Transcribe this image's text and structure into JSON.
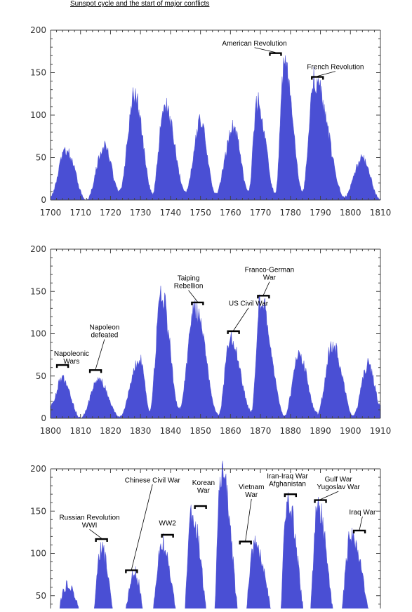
{
  "title": "Sunspot cycle and the start of major conflicts",
  "colors": {
    "fill": "#4a4fd4",
    "axis": "#444444",
    "bracket": "#000000"
  },
  "chart_data": [
    {
      "type": "area",
      "xlim": [
        1700,
        1810
      ],
      "ylim": [
        0,
        200
      ],
      "x_ticks": [
        1700,
        1710,
        1720,
        1730,
        1740,
        1750,
        1760,
        1770,
        1780,
        1790,
        1800,
        1810
      ],
      "y_ticks": [
        0,
        50,
        100,
        150,
        200
      ],
      "peaks": [
        {
          "x": 1705,
          "y": 58
        },
        {
          "x": 1718,
          "y": 63
        },
        {
          "x": 1728,
          "y": 122
        },
        {
          "x": 1738,
          "y": 111
        },
        {
          "x": 1750,
          "y": 92
        },
        {
          "x": 1761,
          "y": 86
        },
        {
          "x": 1769,
          "y": 115
        },
        {
          "x": 1778,
          "y": 158
        },
        {
          "x": 1788,
          "y": 141
        },
        {
          "x": 1804,
          "y": 48
        }
      ],
      "minima": [
        {
          "x": 1700,
          "y": 5
        },
        {
          "x": 1712,
          "y": 0
        },
        {
          "x": 1723,
          "y": 10
        },
        {
          "x": 1734,
          "y": 8
        },
        {
          "x": 1745,
          "y": 10
        },
        {
          "x": 1755,
          "y": 7
        },
        {
          "x": 1766,
          "y": 11
        },
        {
          "x": 1775,
          "y": 7
        },
        {
          "x": 1784,
          "y": 10
        },
        {
          "x": 1798,
          "y": 4
        },
        {
          "x": 1810,
          "y": 0
        }
      ],
      "annotations": [
        {
          "lines": [
            "American Revolution"
          ],
          "x": 1775,
          "y": 173,
          "tx": 1768,
          "ty": 182,
          "anchor": "middle"
        },
        {
          "lines": [
            "French Revolution"
          ],
          "x": 1789,
          "y": 145,
          "tx": 1795,
          "ty": 154,
          "anchor": "middle"
        }
      ]
    },
    {
      "type": "area",
      "xlim": [
        1800,
        1910
      ],
      "ylim": [
        0,
        200
      ],
      "x_ticks": [
        1800,
        1810,
        1820,
        1830,
        1840,
        1850,
        1860,
        1870,
        1880,
        1890,
        1900,
        1910
      ],
      "y_ticks": [
        0,
        50,
        100,
        150,
        200
      ],
      "peaks": [
        {
          "x": 1804,
          "y": 47
        },
        {
          "x": 1816,
          "y": 46
        },
        {
          "x": 1830,
          "y": 71
        },
        {
          "x": 1837,
          "y": 146
        },
        {
          "x": 1848,
          "y": 131
        },
        {
          "x": 1860,
          "y": 96
        },
        {
          "x": 1870,
          "y": 140
        },
        {
          "x": 1883,
          "y": 74
        },
        {
          "x": 1894,
          "y": 87
        },
        {
          "x": 1906,
          "y": 64
        }
      ],
      "minima": [
        {
          "x": 1800,
          "y": 15
        },
        {
          "x": 1810,
          "y": 0
        },
        {
          "x": 1823,
          "y": 2
        },
        {
          "x": 1833,
          "y": 8
        },
        {
          "x": 1843,
          "y": 11
        },
        {
          "x": 1856,
          "y": 4
        },
        {
          "x": 1867,
          "y": 8
        },
        {
          "x": 1878,
          "y": 3
        },
        {
          "x": 1889,
          "y": 6
        },
        {
          "x": 1901,
          "y": 3
        },
        {
          "x": 1910,
          "y": 15
        }
      ],
      "annotations": [
        {
          "lines": [
            "Napoleonic",
            "Wars"
          ],
          "x": 1804,
          "y": 63,
          "tx": 1807,
          "ty": 74,
          "anchor": "middle"
        },
        {
          "lines": [
            "Napoleon",
            "defeated"
          ],
          "x": 1815,
          "y": 57,
          "tx": 1818,
          "ty": 105,
          "anchor": "middle"
        },
        {
          "lines": [
            "Taiping",
            "Rebellion"
          ],
          "x": 1849,
          "y": 137,
          "tx": 1846,
          "ty": 163,
          "anchor": "middle"
        },
        {
          "lines": [
            "US Civil War"
          ],
          "x": 1861,
          "y": 103,
          "tx": 1866,
          "ty": 133,
          "anchor": "middle"
        },
        {
          "lines": [
            "Franco-German",
            "War"
          ],
          "x": 1871,
          "y": 145,
          "tx": 1873,
          "ty": 173,
          "anchor": "middle"
        }
      ]
    },
    {
      "type": "area",
      "xlim": [
        1900,
        2010
      ],
      "ylim": [
        0,
        200
      ],
      "x_ticks": [],
      "y_ticks": [
        50,
        100,
        150,
        200
      ],
      "peaks": [
        {
          "x": 1906,
          "y": 63
        },
        {
          "x": 1917,
          "y": 104
        },
        {
          "x": 1928,
          "y": 78
        },
        {
          "x": 1937,
          "y": 114
        },
        {
          "x": 1947,
          "y": 151
        },
        {
          "x": 1957,
          "y": 201
        },
        {
          "x": 1968,
          "y": 110
        },
        {
          "x": 1979,
          "y": 164
        },
        {
          "x": 1989,
          "y": 158
        },
        {
          "x": 2000,
          "y": 120
        }
      ],
      "minima": [
        {
          "x": 1900,
          "y": 10
        },
        {
          "x": 1913,
          "y": 2
        },
        {
          "x": 1923,
          "y": 6
        },
        {
          "x": 1933,
          "y": 6
        },
        {
          "x": 1944,
          "y": 10
        },
        {
          "x": 1954,
          "y": 4
        },
        {
          "x": 1964,
          "y": 10
        },
        {
          "x": 1976,
          "y": 13
        },
        {
          "x": 1986,
          "y": 14
        },
        {
          "x": 1996,
          "y": 9
        },
        {
          "x": 2009,
          "y": 3
        }
      ],
      "annotations": [
        {
          "lines": [
            "Russian Revolution",
            "WWI"
          ],
          "x": 1917,
          "y": 117,
          "tx": 1913,
          "ty": 140,
          "anchor": "middle"
        },
        {
          "lines": [
            "Chinese Civil War"
          ],
          "x": 1927,
          "y": 80,
          "tx": 1934,
          "ty": 184,
          "anchor": "middle"
        },
        {
          "lines": [
            "WW2"
          ],
          "x": 1939,
          "y": 122,
          "tx": 1939,
          "ty": 133,
          "anchor": "middle"
        },
        {
          "lines": [
            "Korean",
            "War"
          ],
          "x": 1950,
          "y": 156,
          "tx": 1951,
          "ty": 181,
          "anchor": "middle"
        },
        {
          "lines": [
            "Vietnam",
            "War"
          ],
          "x": 1965,
          "y": 114,
          "tx": 1967,
          "ty": 176,
          "anchor": "middle"
        },
        {
          "lines": [
            "Iran-Iraq War",
            "Afghanistan"
          ],
          "x": 1980,
          "y": 170,
          "tx": 1979,
          "ty": 189,
          "anchor": "middle"
        },
        {
          "lines": [
            "Gulf War",
            "Yugoslav War"
          ],
          "x": 1990,
          "y": 163,
          "tx": 1996,
          "ty": 185,
          "anchor": "middle"
        },
        {
          "lines": [
            "Iraq War"
          ],
          "x": 2003,
          "y": 127,
          "tx": 2004,
          "ty": 146,
          "anchor": "middle"
        }
      ]
    }
  ]
}
